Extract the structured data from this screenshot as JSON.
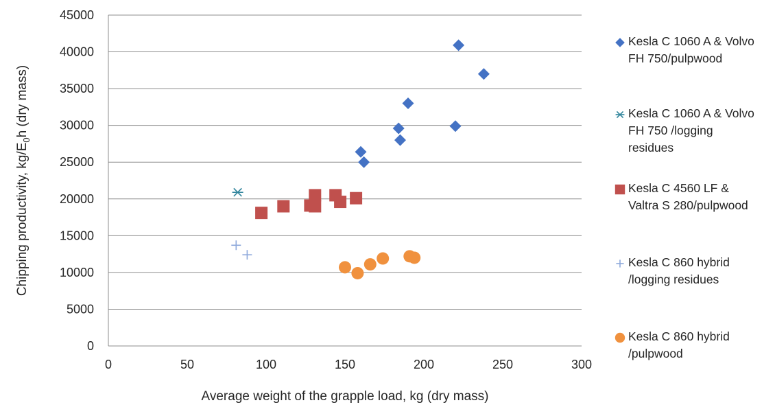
{
  "chart_data": {
    "type": "scatter",
    "title": "",
    "xlabel": "Average weight of the grapple load, kg (dry mass)",
    "ylabel_parts": [
      "Chipping productivity, kg/E",
      "0",
      "h (dry mass)"
    ],
    "xlim": [
      0,
      300
    ],
    "ylim": [
      0,
      45000
    ],
    "xticks": [
      0,
      50,
      100,
      150,
      200,
      250,
      300
    ],
    "yticks": [
      0,
      5000,
      10000,
      15000,
      20000,
      25000,
      30000,
      35000,
      40000,
      45000
    ],
    "grid": "horizontal",
    "legend_position": "right",
    "series": [
      {
        "name": "Kesla C 1060 A & Volvo FH 750/pulpwood",
        "label_lines": [
          "Kesla C 1060 A & Volvo",
          "FH 750/pulpwood"
        ],
        "marker": "diamond",
        "color": "#4472C4",
        "points": [
          [
            160,
            26400
          ],
          [
            162,
            25000
          ],
          [
            184,
            29600
          ],
          [
            185,
            28000
          ],
          [
            190,
            33000
          ],
          [
            220,
            29900
          ],
          [
            222,
            40900
          ],
          [
            238,
            37000
          ]
        ]
      },
      {
        "name": "Kesla C 1060 A & Volvo FH 750 /logging residues",
        "label_lines": [
          "Kesla C 1060 A & Volvo",
          "FH 750 /logging",
          "residues"
        ],
        "marker": "asterisk",
        "color": "#31859C",
        "points": [
          [
            82,
            20900
          ]
        ]
      },
      {
        "name": "Kesla C 4560 LF & Valtra S 280/pulpwood",
        "label_lines": [
          "Kesla C 4560 LF &",
          "Valtra S 280/pulpwood"
        ],
        "marker": "square",
        "color": "#C0504D",
        "points": [
          [
            97,
            18100
          ],
          [
            111,
            19000
          ],
          [
            128,
            19100
          ],
          [
            131,
            19000
          ],
          [
            131,
            20500
          ],
          [
            144,
            20500
          ],
          [
            147,
            19600
          ],
          [
            157,
            20100
          ]
        ]
      },
      {
        "name": "Kesla C 860 hybrid /logging residues",
        "label_lines": [
          "Kesla C 860 hybrid",
          "/logging residues"
        ],
        "marker": "plus",
        "color": "#8EA9DB",
        "points": [
          [
            81,
            13700
          ],
          [
            88,
            12400
          ]
        ]
      },
      {
        "name": "Kesla C 860 hybrid /pulpwood",
        "label_lines": [
          "Kesla C 860 hybrid",
          "/pulpwood"
        ],
        "marker": "circle",
        "color": "#F0913E",
        "points": [
          [
            150,
            10700
          ],
          [
            158,
            9900
          ],
          [
            166,
            11100
          ],
          [
            174,
            11900
          ],
          [
            191,
            12200
          ],
          [
            194,
            12000
          ]
        ]
      }
    ]
  }
}
